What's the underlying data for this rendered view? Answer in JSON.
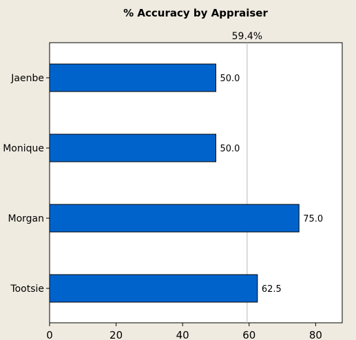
{
  "chart_data": {
    "type": "bar",
    "orientation": "horizontal",
    "title": "% Accuracy by Appraiser",
    "categories": [
      "Jaenbe",
      "Monique",
      "Morgan",
      "Tootsie"
    ],
    "values": [
      50.0,
      50.0,
      75.0,
      62.5
    ],
    "value_labels": [
      "50.0",
      "50.0",
      "75.0",
      "62.5"
    ],
    "xlabel": "",
    "ylabel": "",
    "xlim": [
      0,
      88
    ],
    "xticks": [
      0,
      20,
      40,
      60,
      80
    ],
    "reference_line": {
      "value": 59.4,
      "label": "59.4%"
    },
    "grid": false,
    "bar_color": "#0063cc",
    "bar_edge_color": "#000000",
    "reference_line_color": "#b8b8b8"
  }
}
